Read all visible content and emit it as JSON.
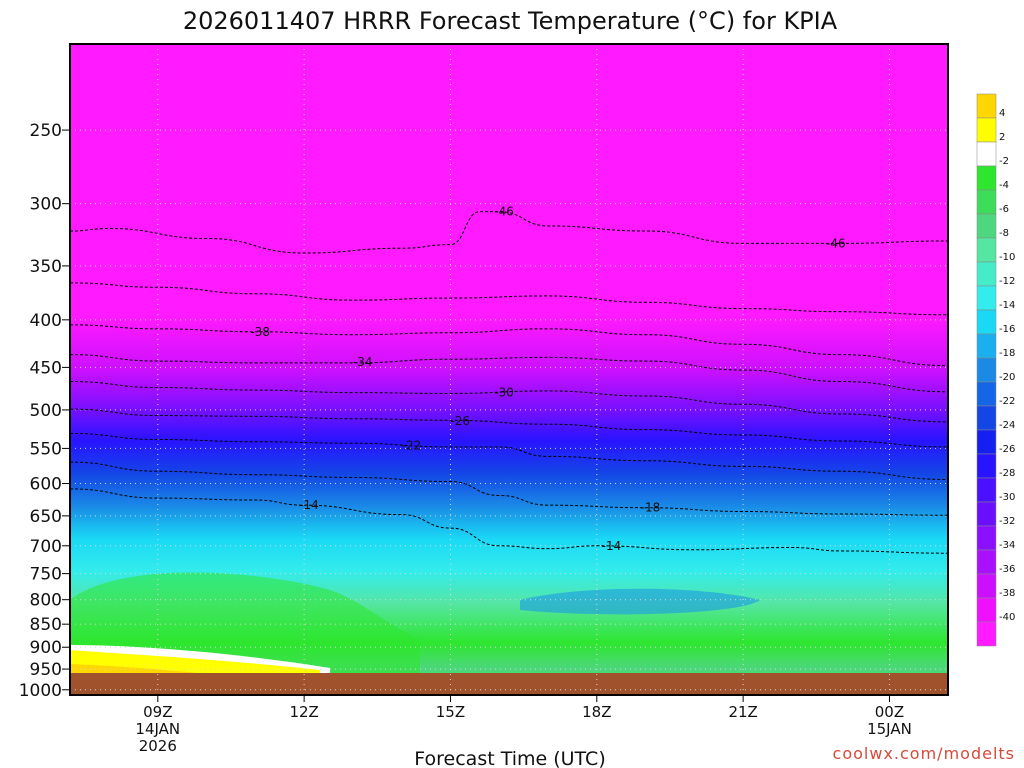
{
  "chart_data": {
    "type": "heatmap",
    "title": "2026011407 HRRR Forecast Temperature (°C) for KPIA",
    "xlabel": "Forecast Time (UTC)",
    "ylabel": "",
    "credit": "coolwx.com/modelts",
    "y_axis": {
      "scale": "log-pressure",
      "range": [
        1013,
        202
      ],
      "ticks": [
        250,
        300,
        350,
        400,
        450,
        500,
        550,
        600,
        650,
        700,
        750,
        800,
        850,
        900,
        950,
        1000
      ]
    },
    "x_axis": {
      "range_hours": [
        7.2,
        25.2
      ],
      "ticks": [
        {
          "hour": 9,
          "lines": [
            "09Z",
            "14JAN",
            "2026"
          ]
        },
        {
          "hour": 12,
          "lines": [
            "12Z"
          ]
        },
        {
          "hour": 15,
          "lines": [
            "15Z"
          ]
        },
        {
          "hour": 18,
          "lines": [
            "18Z"
          ]
        },
        {
          "hour": 21,
          "lines": [
            "21Z"
          ]
        },
        {
          "hour": 24,
          "lines": [
            "00Z",
            "15JAN"
          ]
        }
      ]
    },
    "colorbar": {
      "labels": [
        "4",
        "2",
        "-2",
        "-4",
        "-6",
        "-8",
        "-10",
        "-12",
        "-14",
        "-16",
        "-18",
        "-20",
        "-22",
        "-24",
        "-26",
        "-28",
        "-30",
        "-32",
        "-34",
        "-36",
        "-38",
        "-40"
      ],
      "colors": [
        "#ffd700",
        "#ffff00",
        "#ffffff",
        "#2ee62e",
        "#3ddc5a",
        "#4dd77e",
        "#55e6a3",
        "#45ecc8",
        "#33ecec",
        "#1ad9f5",
        "#1ab0f0",
        "#1a8ae6",
        "#1466e6",
        "#1446e6",
        "#1420f0",
        "#2814ff",
        "#4a10ff",
        "#6a10ff",
        "#8a10ff",
        "#aa10ff",
        "#cc10ff",
        "#ee10ff",
        "#ff1aff"
      ]
    },
    "contours": [
      {
        "level": -46,
        "label": "-46",
        "points": [
          [
            7.2,
            321
          ],
          [
            8,
            319
          ],
          [
            10,
            327
          ],
          [
            12,
            339
          ],
          [
            14,
            335
          ],
          [
            15,
            332
          ],
          [
            15.6,
            306
          ],
          [
            16,
            306
          ],
          [
            17,
            317
          ],
          [
            19,
            321
          ],
          [
            21,
            331
          ],
          [
            23,
            331
          ],
          [
            25.2,
            329
          ]
        ],
        "labels_at": [
          [
            16.1,
            306
          ],
          [
            22.9,
            331
          ]
        ]
      },
      {
        "level": -42,
        "label": "",
        "points": [
          [
            7.2,
            365
          ],
          [
            9,
            369
          ],
          [
            11,
            375
          ],
          [
            13,
            381
          ],
          [
            15,
            379
          ],
          [
            17,
            377
          ],
          [
            19,
            383
          ],
          [
            21,
            389
          ],
          [
            23,
            392
          ],
          [
            25.2,
            395
          ]
        ],
        "labels_at": []
      },
      {
        "level": -38,
        "label": "-38",
        "points": [
          [
            7.2,
            405
          ],
          [
            9,
            409
          ],
          [
            11,
            412
          ],
          [
            13,
            415
          ],
          [
            15,
            413
          ],
          [
            17,
            409
          ],
          [
            19,
            415
          ],
          [
            21,
            425
          ],
          [
            23,
            436
          ],
          [
            25.2,
            448
          ]
        ],
        "labels_at": [
          [
            11.1,
            412
          ]
        ]
      },
      {
        "level": -34,
        "label": "-34",
        "points": [
          [
            7.2,
            436
          ],
          [
            9,
            443
          ],
          [
            11,
            445
          ],
          [
            13,
            445
          ],
          [
            15,
            441
          ],
          [
            17,
            439
          ],
          [
            19,
            443
          ],
          [
            21,
            453
          ],
          [
            23,
            466
          ],
          [
            25.2,
            478
          ]
        ],
        "labels_at": [
          [
            13.2,
            444
          ]
        ]
      },
      {
        "level": -30,
        "label": "-30",
        "points": [
          [
            7.2,
            466
          ],
          [
            9,
            473
          ],
          [
            11,
            476
          ],
          [
            13,
            479
          ],
          [
            15,
            480
          ],
          [
            17,
            477
          ],
          [
            19,
            483
          ],
          [
            21,
            493
          ],
          [
            23,
            505
          ],
          [
            25.2,
            515
          ]
        ],
        "labels_at": [
          [
            16.1,
            479
          ]
        ]
      },
      {
        "level": -26,
        "label": "-26",
        "points": [
          [
            7.2,
            499
          ],
          [
            9,
            507
          ],
          [
            11,
            508
          ],
          [
            13,
            511
          ],
          [
            15,
            513
          ],
          [
            17,
            518
          ],
          [
            19,
            525
          ],
          [
            21,
            532
          ],
          [
            23,
            540
          ],
          [
            25.2,
            548
          ]
        ],
        "labels_at": [
          [
            15.2,
            514
          ]
        ]
      },
      {
        "level": -22,
        "label": "-22",
        "points": [
          [
            7.2,
            530
          ],
          [
            9,
            538
          ],
          [
            11,
            541
          ],
          [
            13,
            543
          ],
          [
            15,
            548
          ],
          [
            16,
            548
          ],
          [
            17,
            561
          ],
          [
            19,
            567
          ],
          [
            21,
            575
          ],
          [
            23,
            582
          ],
          [
            25.2,
            594
          ]
        ],
        "labels_at": [
          [
            14.2,
            546
          ]
        ]
      },
      {
        "level": -18,
        "label": "-18",
        "points": [
          [
            7.2,
            569
          ],
          [
            9,
            582
          ],
          [
            11,
            587
          ],
          [
            13,
            591
          ],
          [
            15,
            597
          ],
          [
            16,
            618
          ],
          [
            17,
            633
          ],
          [
            19,
            637
          ],
          [
            21,
            643
          ],
          [
            23,
            647
          ],
          [
            25.2,
            649
          ]
        ],
        "labels_at": [
          [
            19.1,
            637
          ]
        ]
      },
      {
        "level": -14,
        "label": "-14",
        "points": [
          [
            7.2,
            608
          ],
          [
            9,
            622
          ],
          [
            11,
            625
          ],
          [
            12,
            633
          ],
          [
            14,
            648
          ],
          [
            15,
            670
          ],
          [
            16,
            700
          ],
          [
            17,
            705
          ],
          [
            18,
            700
          ],
          [
            20,
            707
          ],
          [
            22,
            703
          ],
          [
            23,
            709
          ],
          [
            25.2,
            713
          ]
        ],
        "labels_at": [
          [
            12.1,
            633
          ],
          [
            18.3,
            700
          ]
        ]
      }
    ]
  }
}
